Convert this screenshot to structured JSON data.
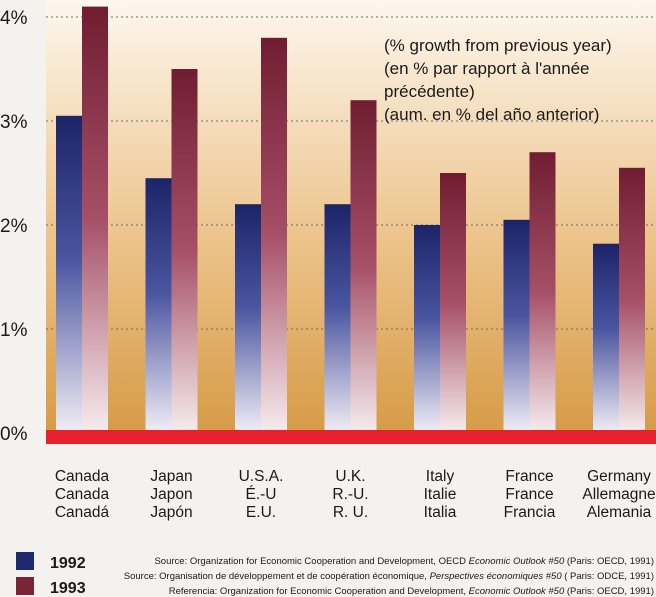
{
  "chart_data": {
    "type": "bar",
    "categories": [
      [
        "Canada",
        "Canada",
        "Canadá"
      ],
      [
        "Japan",
        "Japon",
        "Japón"
      ],
      [
        "U.S.A.",
        "É.-U",
        "E.U."
      ],
      [
        "U.K.",
        "R.-U.",
        "R. U."
      ],
      [
        "Italy",
        "Italie",
        "Italia"
      ],
      [
        "France",
        "France",
        "Francia"
      ],
      [
        "Germany",
        "Allemagne",
        "Alemania"
      ]
    ],
    "series": [
      {
        "name": "1992",
        "values": [
          3.05,
          2.45,
          2.2,
          2.2,
          2.0,
          2.05,
          1.82
        ]
      },
      {
        "name": "1993",
        "values": [
          4.1,
          3.5,
          3.8,
          3.2,
          2.5,
          2.7,
          2.55
        ]
      }
    ],
    "ylim": [
      0,
      4
    ],
    "y_ticks": [
      "0%",
      "1%",
      "2%",
      "3%",
      "4%"
    ],
    "grid": true,
    "annotation": [
      "(% growth from previous year)",
      "(en % par rapport à l'année",
      "précédente)",
      "(aum. en % del año anterior)"
    ],
    "legend_position": "bottom-left",
    "colors": {
      "series_1992": "#1f2a6e",
      "series_1993": "#7a2436",
      "baseline": "#e8202e",
      "background_top": "#fdf7ee",
      "background_bottom": "#d69a45"
    }
  },
  "sources": [
    {
      "prefix": "Source: Organization for Economic Cooperation and Development, OECD ",
      "italic": "Economic Outlook #50",
      "suffix": " (Paris: OECD, 1991)"
    },
    {
      "prefix": "Source: Organisation de développement et de coopération économique, ",
      "italic": "Perspectives économiques #50",
      "suffix": " ( Paris: ODCE, 1991)"
    },
    {
      "prefix": "Referencia: Organization for Economic Cooperation and Development, ",
      "italic": "Economic Outlook #50",
      "suffix": " (Paris: OECD, 1991)"
    }
  ]
}
